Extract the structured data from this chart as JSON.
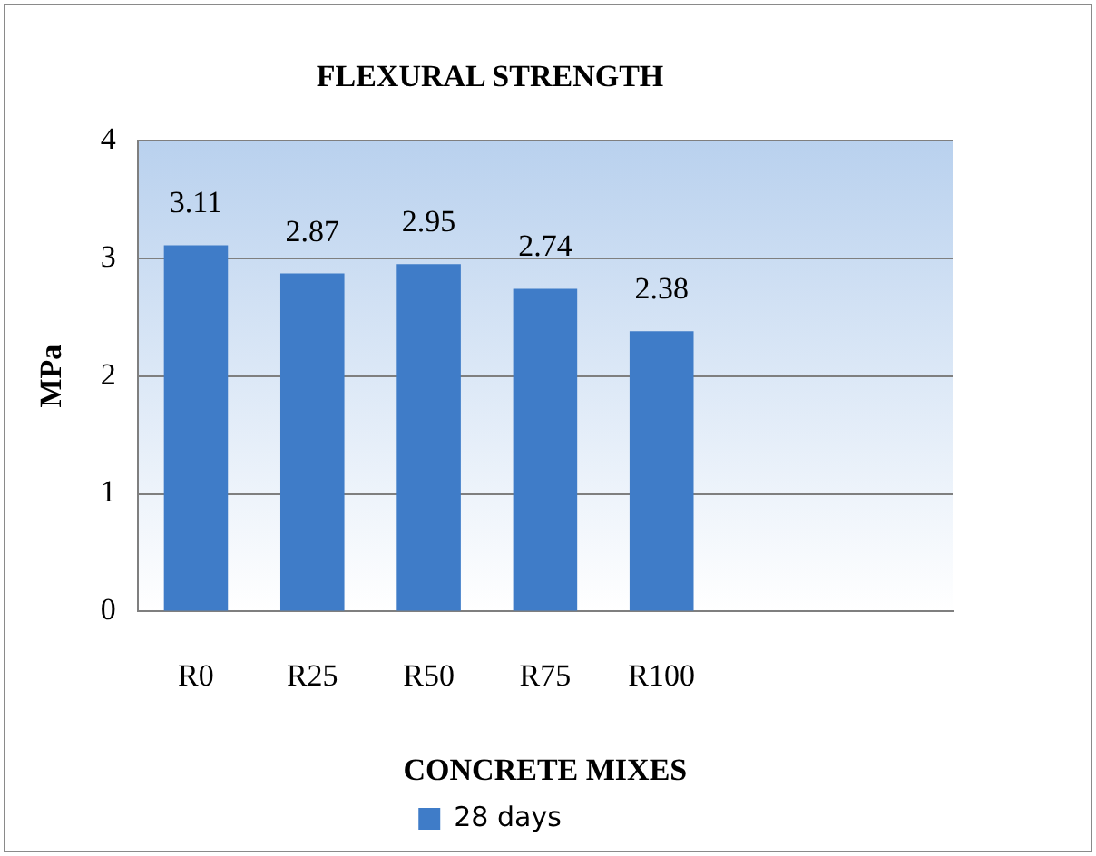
{
  "chart_data": {
    "type": "bar",
    "title": "FLEXURAL STRENGTH",
    "xlabel": "CONCRETE MIXES",
    "ylabel": "MPa",
    "categories": [
      "R0",
      "R25",
      "R50",
      "R75",
      "R100",
      null,
      null
    ],
    "series": [
      {
        "name": "28 days",
        "color": "#3f7cc8",
        "values": [
          3.11,
          2.87,
          2.95,
          2.74,
          2.38,
          null,
          null
        ]
      }
    ],
    "ylim": [
      0,
      4
    ],
    "yticks": [
      0,
      1,
      2,
      3,
      4
    ],
    "grid": "y",
    "legend": "bottom",
    "data_labels": true
  }
}
